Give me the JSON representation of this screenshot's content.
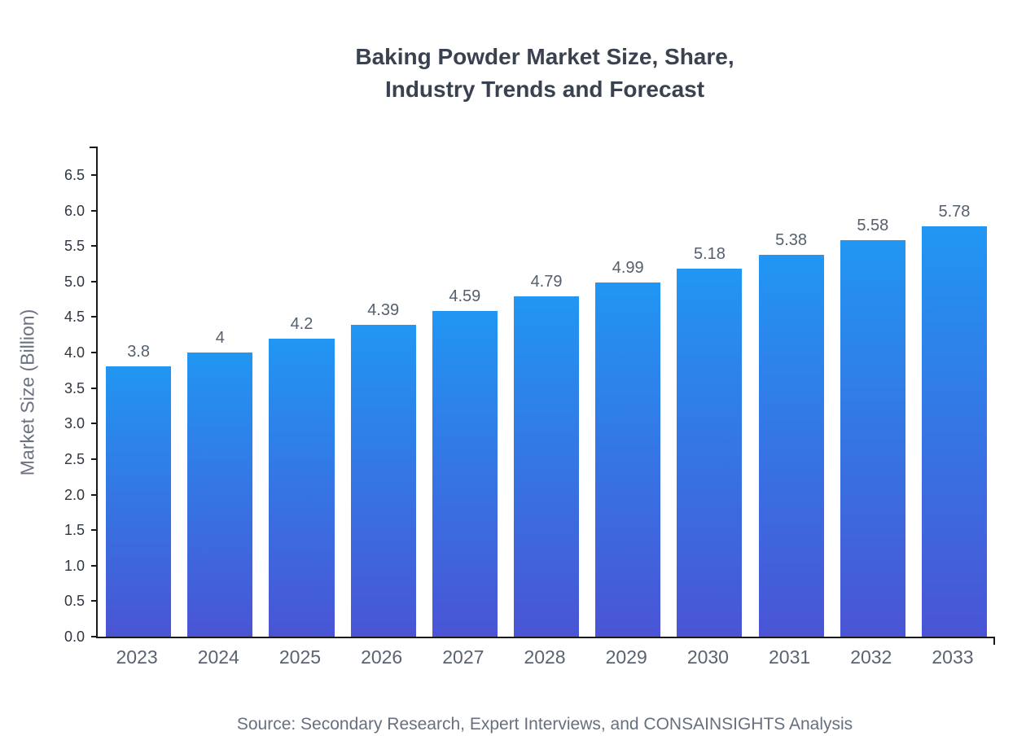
{
  "title": {
    "full": "Baking Powder Market Size, Share, Industry Trends and Forecast"
  },
  "source": "Source: Secondary Research, Expert Interviews, and CONSAINSIGHTS Analysis",
  "chart_data": {
    "type": "bar",
    "title": "Baking Powder Market Size, Share, Industry Trends and Forecast",
    "title_lines": [
      "Baking Powder Market Size, Share,",
      "Industry Trends and Forecast"
    ],
    "categories": [
      "2023",
      "2024",
      "2025",
      "2026",
      "2027",
      "2028",
      "2029",
      "2030",
      "2031",
      "2032",
      "2033"
    ],
    "values": [
      3.8,
      4,
      4.2,
      4.39,
      4.59,
      4.79,
      4.99,
      5.18,
      5.38,
      5.58,
      5.78
    ],
    "xlabel": "",
    "ylabel": "Market Size (Billion)",
    "ylim": [
      0,
      6.9
    ],
    "yticks": [
      0,
      0.5,
      1,
      1.5,
      2,
      2.5,
      3,
      3.5,
      4,
      4.5,
      5,
      5.5,
      6,
      6.5
    ],
    "grid": false,
    "legend": false,
    "bar_gradient": [
      "#2196f3",
      "#4a54d4"
    ]
  }
}
